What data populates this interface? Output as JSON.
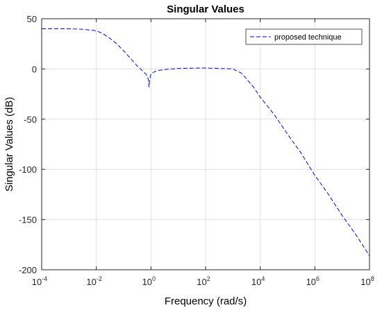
{
  "chart_data": {
    "type": "line",
    "title": "Singular Values",
    "xlabel": "Frequency (rad/s)",
    "ylabel": "Singular Values (dB)",
    "xscale": "log",
    "xlim": [
      0.0001,
      100000000
    ],
    "ylim": [
      -200,
      50
    ],
    "grid": true,
    "legend_position": "top-right",
    "x_ticks": [
      {
        "base": "10",
        "exp": "-4",
        "value": 0.0001
      },
      {
        "base": "10",
        "exp": "-2",
        "value": 0.01
      },
      {
        "base": "10",
        "exp": "0",
        "value": 1
      },
      {
        "base": "10",
        "exp": "2",
        "value": 100
      },
      {
        "base": "10",
        "exp": "4",
        "value": 10000
      },
      {
        "base": "10",
        "exp": "6",
        "value": 1000000
      },
      {
        "base": "10",
        "exp": "8",
        "value": 100000000
      }
    ],
    "y_ticks": [
      {
        "label": "50",
        "value": 50
      },
      {
        "label": "0",
        "value": 0
      },
      {
        "label": "-50",
        "value": -50
      },
      {
        "label": "-100",
        "value": -100
      },
      {
        "label": "-150",
        "value": -150
      },
      {
        "label": "-200",
        "value": -200
      }
    ],
    "series": [
      {
        "name": "proposed technique",
        "color": "#0000ff",
        "line_style": "dashed",
        "x": [
          0.0001,
          0.000316,
          0.001,
          0.00316,
          0.01,
          0.0178,
          0.0316,
          0.0562,
          0.1,
          0.178,
          0.316,
          0.5,
          0.7,
          0.8,
          0.85,
          0.9,
          1.0,
          1.2,
          1.6,
          2.5,
          4,
          6.3,
          10,
          31.6,
          100,
          316,
          1000,
          2000,
          3160,
          5620,
          10000,
          31600,
          100000,
          316000,
          1000000,
          3160000,
          10000000,
          31600000,
          100000000
        ],
        "y": [
          40,
          40,
          40,
          39.5,
          38,
          35,
          30.5,
          25,
          18,
          10.5,
          3,
          -2,
          -6,
          -10,
          -18,
          -11,
          -5,
          -3.5,
          -2,
          -1,
          -0.3,
          0,
          0.5,
          0.8,
          1,
          0.5,
          0,
          -4,
          -10,
          -18,
          -28,
          -45,
          -65,
          -84,
          -106,
          -125,
          -146,
          -165,
          -186
        ]
      }
    ]
  }
}
